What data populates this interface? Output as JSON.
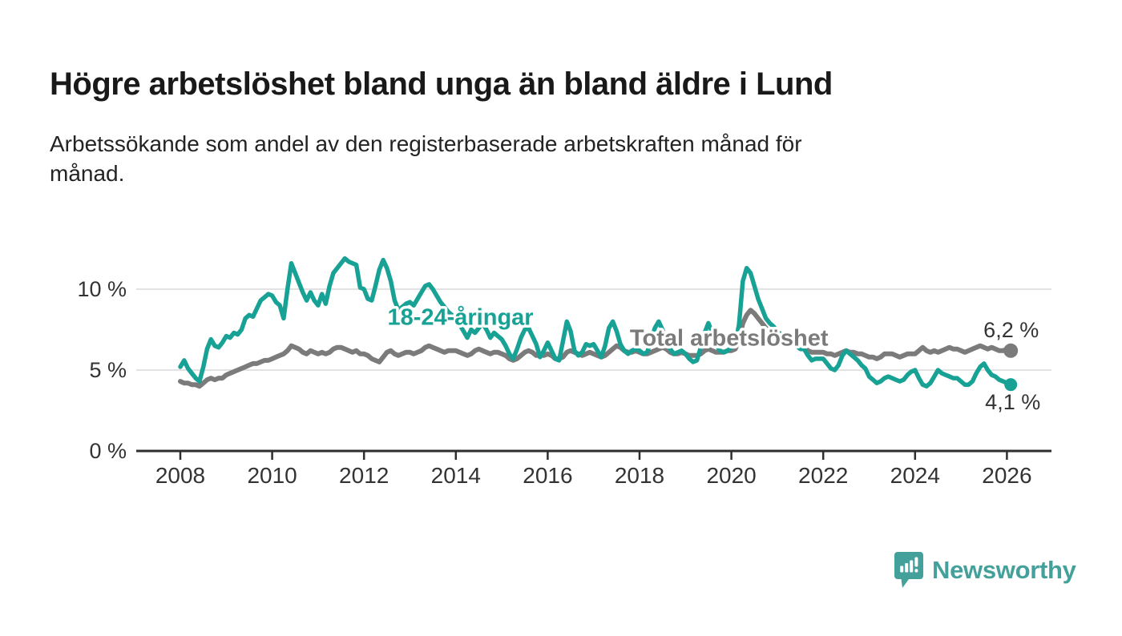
{
  "title": "Högre arbetslöshet bland unga än bland äldre i Lund",
  "subtitle_lines": [
    "Arbetssökande som andel av den registerbaserade arbetskraften månad för",
    "månad."
  ],
  "branding": {
    "logo_text": "Newsworthy",
    "logo_icon": "speech-bubble-bar-chart-icon",
    "color": "#44a09a"
  },
  "chart_data": {
    "type": "line",
    "title": "Högre arbetslöshet bland unga än bland äldre i Lund",
    "subtitle": "Arbetssökande som andel av den registerbaserade arbetskraften månad för månad.",
    "x_start_year": 2008,
    "x_step": "monthly",
    "x_end": "2026-02",
    "xticks": [
      2008,
      2010,
      2012,
      2014,
      2016,
      2018,
      2020,
      2022,
      2024,
      2026
    ],
    "yticks": [
      {
        "label": "0 %",
        "value": 0
      },
      {
        "label": "5 %",
        "value": 5
      },
      {
        "label": "10 %",
        "value": 10
      }
    ],
    "ylim": [
      0,
      13
    ],
    "grid": true,
    "legend_position": "inline-labels",
    "axis_color": "#2e2e2e",
    "grid_color": "#d9d9d9",
    "tick_label_color": "#333333",
    "value_label_color": "#333333",
    "series": [
      {
        "name": "Total arbetslöshet",
        "color": "#7b7b7b",
        "end_label": "6,2 %",
        "end_label_offset": [
          -34,
          -17
        ],
        "end_dot_radius": 9,
        "stroke_width": 6,
        "values": [
          4.3,
          4.2,
          4.2,
          4.1,
          4.1,
          4.0,
          4.2,
          4.4,
          4.5,
          4.4,
          4.5,
          4.5,
          4.7,
          4.8,
          4.9,
          5.0,
          5.1,
          5.2,
          5.3,
          5.4,
          5.4,
          5.5,
          5.6,
          5.6,
          5.7,
          5.8,
          5.9,
          6.0,
          6.2,
          6.5,
          6.4,
          6.3,
          6.1,
          6.0,
          6.2,
          6.1,
          6.0,
          6.1,
          6.0,
          6.1,
          6.3,
          6.4,
          6.4,
          6.3,
          6.2,
          6.1,
          6.2,
          6.0,
          6.0,
          5.9,
          5.7,
          5.6,
          5.5,
          5.8,
          6.1,
          6.2,
          6.0,
          5.9,
          6.0,
          6.1,
          6.1,
          6.0,
          6.1,
          6.2,
          6.4,
          6.5,
          6.4,
          6.3,
          6.2,
          6.1,
          6.2,
          6.2,
          6.2,
          6.1,
          6.0,
          5.9,
          6.0,
          6.2,
          6.3,
          6.2,
          6.1,
          6.0,
          6.1,
          6.1,
          6.0,
          5.9,
          5.7,
          5.6,
          5.7,
          5.9,
          6.1,
          6.2,
          6.1,
          5.9,
          5.9,
          5.9,
          6.0,
          5.9,
          5.7,
          5.7,
          5.8,
          6.1,
          6.2,
          6.1,
          6.0,
          5.9,
          6.0,
          6.1,
          6.0,
          5.9,
          5.8,
          5.9,
          6.1,
          6.3,
          6.5,
          6.4,
          6.2,
          6.1,
          6.1,
          6.2,
          6.1,
          6.0,
          6.0,
          6.1,
          6.2,
          6.3,
          6.4,
          6.3,
          6.1,
          6.0,
          6.0,
          6.1,
          6.0,
          5.9,
          5.9,
          5.9,
          6.0,
          6.2,
          6.3,
          6.2,
          6.1,
          6.1,
          6.1,
          6.2,
          6.2,
          6.3,
          6.8,
          7.9,
          8.4,
          8.7,
          8.5,
          8.2,
          7.9,
          7.6,
          7.4,
          7.3,
          7.2,
          7.1,
          7.0,
          6.8,
          6.7,
          6.6,
          6.5,
          6.4,
          6.2,
          6.1,
          6.1,
          6.1,
          6.1,
          6.0,
          6.0,
          5.9,
          6.0,
          6.1,
          6.2,
          6.1,
          6.1,
          6.0,
          6.0,
          5.9,
          5.8,
          5.8,
          5.7,
          5.8,
          6.0,
          6.0,
          6.0,
          5.9,
          5.8,
          5.9,
          6.0,
          6.0,
          6.0,
          6.2,
          6.4,
          6.2,
          6.1,
          6.2,
          6.1,
          6.2,
          6.3,
          6.4,
          6.3,
          6.3,
          6.2,
          6.1,
          6.2,
          6.3,
          6.4,
          6.5,
          6.4,
          6.3,
          6.4,
          6.3,
          6.2,
          6.2,
          6.3,
          6.2
        ]
      },
      {
        "name": "18-24-åringar",
        "color": "#17a295",
        "end_label": "4,1 %",
        "end_label_offset": [
          -32,
          31
        ],
        "end_dot_radius": 8,
        "stroke_width": 5.5,
        "values": [
          5.2,
          5.6,
          5.1,
          4.8,
          4.5,
          4.3,
          5.2,
          6.3,
          6.9,
          6.5,
          6.4,
          6.7,
          7.1,
          7.0,
          7.3,
          7.2,
          7.5,
          8.2,
          8.4,
          8.3,
          8.8,
          9.3,
          9.5,
          9.7,
          9.6,
          9.2,
          9.0,
          8.2,
          10.0,
          11.6,
          11.0,
          10.4,
          9.8,
          9.3,
          9.8,
          9.3,
          9.0,
          9.7,
          9.1,
          10.2,
          11.0,
          11.3,
          11.6,
          11.9,
          11.7,
          11.6,
          11.5,
          10.1,
          10.0,
          9.4,
          9.3,
          10.2,
          11.2,
          11.8,
          11.3,
          10.5,
          9.3,
          8.7,
          8.9,
          9.1,
          9.2,
          9.0,
          9.4,
          9.8,
          10.2,
          10.3,
          10.0,
          9.6,
          9.2,
          8.9,
          8.6,
          8.4,
          8.2,
          7.8,
          7.4,
          7.0,
          7.5,
          7.3,
          7.6,
          7.9,
          7.5,
          7.0,
          7.3,
          7.1,
          6.9,
          6.5,
          6.0,
          5.7,
          6.3,
          7.0,
          7.5,
          7.6,
          7.1,
          6.6,
          5.8,
          6.2,
          6.7,
          6.2,
          5.7,
          5.6,
          6.8,
          8.0,
          7.4,
          6.2,
          5.9,
          6.1,
          6.6,
          6.5,
          6.6,
          6.2,
          5.8,
          6.5,
          7.6,
          8.0,
          7.4,
          6.6,
          6.2,
          6.0,
          6.2,
          6.3,
          6.2,
          6.0,
          6.1,
          6.8,
          7.6,
          8.0,
          7.5,
          6.8,
          6.3,
          6.0,
          6.1,
          6.2,
          6.0,
          5.7,
          5.5,
          5.6,
          6.4,
          7.3,
          7.9,
          7.3,
          6.6,
          6.2,
          6.1,
          6.2,
          6.4,
          6.6,
          7.8,
          10.5,
          11.3,
          11.0,
          10.2,
          9.4,
          8.8,
          8.2,
          7.9,
          7.7,
          7.4,
          7.2,
          6.9,
          6.6,
          6.8,
          6.5,
          6.3,
          6.3,
          5.9,
          5.6,
          5.7,
          5.7,
          5.7,
          5.4,
          5.1,
          5.0,
          5.3,
          5.9,
          6.2,
          6.0,
          5.8,
          5.6,
          5.3,
          5.1,
          4.6,
          4.4,
          4.2,
          4.3,
          4.5,
          4.6,
          4.5,
          4.4,
          4.3,
          4.4,
          4.7,
          4.9,
          5.0,
          4.5,
          4.1,
          4.0,
          4.2,
          4.6,
          5.0,
          4.8,
          4.7,
          4.6,
          4.5,
          4.5,
          4.3,
          4.1,
          4.1,
          4.3,
          4.8,
          5.2,
          5.4,
          5.0,
          4.7,
          4.6,
          4.4,
          4.3,
          4.2,
          4.1
        ]
      }
    ],
    "annotations": [
      {
        "text": "18-24-åringar",
        "year": 2014.1,
        "value": 7.8,
        "color": "#17a295",
        "anchor": "middle"
      },
      {
        "text": "Total arbetslöshet",
        "year": 2019.95,
        "value": 6.5,
        "color": "#7b7b7b",
        "anchor": "middle"
      }
    ]
  }
}
